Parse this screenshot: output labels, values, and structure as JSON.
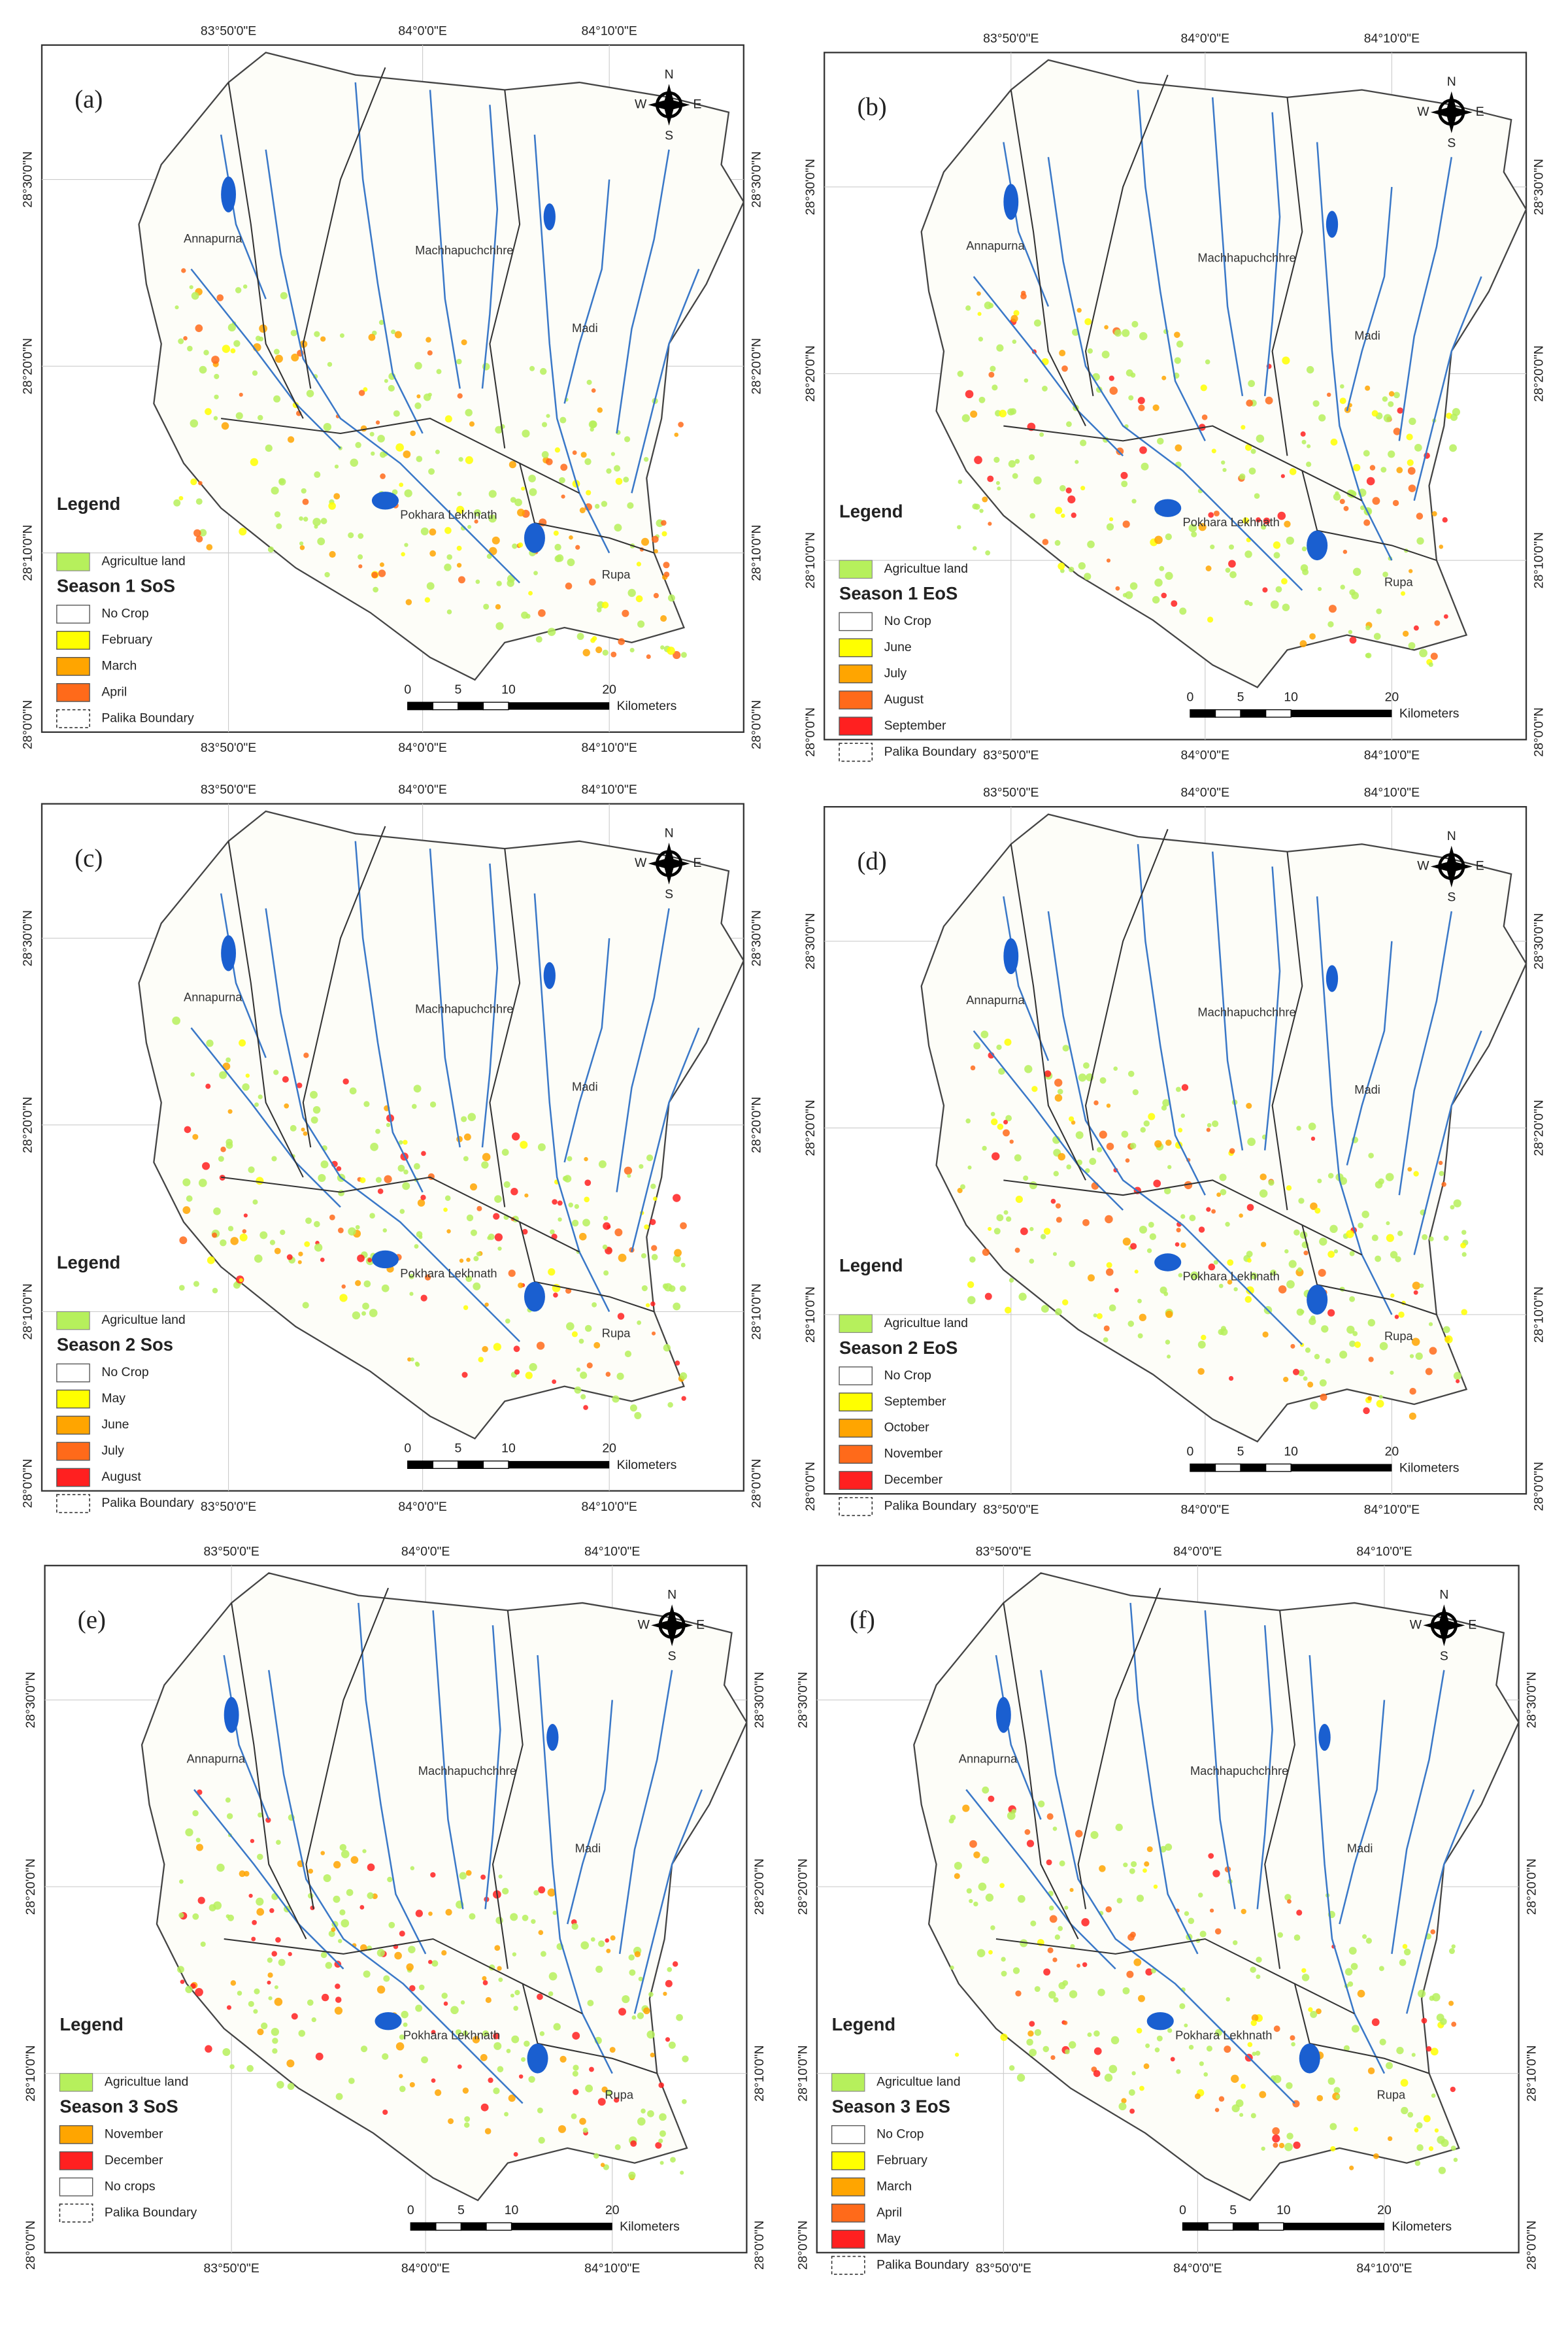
{
  "panels": [
    {
      "label": "(a)",
      "lon_top": [
        "83°50'0\"E",
        "84°0'0\"E",
        "84°10'0\"E"
      ],
      "lon_bottom": [
        "83°50'0\"E",
        "84°0'0\"E",
        "84°10'0\"E"
      ],
      "lat_left": [
        "28°30'0\"N",
        "28°20'0\"N",
        "28°10'0\"N",
        "28°0'0\"N"
      ],
      "lat_right": [
        "28°30'0\"N",
        "28°20'0\"N",
        "28°10'0\"N",
        "28°0'0\"N"
      ],
      "compass": {
        "n": "N",
        "e": "E",
        "s": "S",
        "w": "W"
      },
      "places": [
        "Annapurna",
        "Machhapuchchhre",
        "Madi",
        "Pokhara Lekhnath",
        "Rupa"
      ],
      "legend": {
        "title": "Legend",
        "land": {
          "label": "Agricultue land",
          "color": "#b6f05c"
        },
        "season": "Season 1 SoS",
        "items": [
          {
            "label": "No Crop",
            "color": "#ffffff"
          },
          {
            "label": "February",
            "color": "#ffff00"
          },
          {
            "label": "March",
            "color": "#ffa500"
          },
          {
            "label": "April",
            "color": "#ff6a1a"
          }
        ],
        "boundary": "Palika Boundary"
      },
      "scale": {
        "ticks": [
          0,
          5,
          10,
          20
        ],
        "unit": "Kilometers"
      }
    },
    {
      "label": "(b)",
      "lon_top": [
        "83°50'0\"E",
        "84°0'0\"E",
        "84°10'0\"E"
      ],
      "lon_bottom": [
        "83°50'0\"E",
        "84°0'0\"E",
        "84°10'0\"E"
      ],
      "lat_left": [
        "28°30'0\"N",
        "28°20'0\"N",
        "28°10'0\"N",
        "28°0'0\"N"
      ],
      "lat_right": [
        "28°30'0\"N",
        "28°20'0\"N",
        "28°10'0\"N",
        "28°0'0\"N"
      ],
      "compass": {
        "n": "N",
        "e": "E",
        "s": "S",
        "w": "W"
      },
      "places": [
        "Annapurna",
        "Machhapuchchhre",
        "Madi",
        "Pokhara Lekhnath",
        "Rupa"
      ],
      "legend": {
        "title": "Legend",
        "land": {
          "label": "Agricultue land",
          "color": "#b6f05c"
        },
        "season": "Season 1 EoS",
        "items": [
          {
            "label": "No Crop",
            "color": "#ffffff"
          },
          {
            "label": "June",
            "color": "#ffff00"
          },
          {
            "label": "July",
            "color": "#ffa500"
          },
          {
            "label": "August",
            "color": "#ff6a1a"
          },
          {
            "label": "September",
            "color": "#ff2020"
          }
        ],
        "boundary": "Palika Boundary"
      },
      "scale": {
        "ticks": [
          0,
          5,
          10,
          20
        ],
        "unit": "Kilometers"
      }
    },
    {
      "label": "(c)",
      "lon_top": [
        "83°50'0\"E",
        "84°0'0\"E",
        "84°10'0\"E"
      ],
      "lon_bottom": [
        "83°50'0\"E",
        "84°0'0\"E",
        "84°10'0\"E"
      ],
      "lat_left": [
        "28°30'0\"N",
        "28°20'0\"N",
        "28°10'0\"N",
        "28°0'0\"N"
      ],
      "lat_right": [
        "28°30'0\"N",
        "28°20'0\"N",
        "28°10'0\"N",
        "28°0'0\"N"
      ],
      "compass": {
        "n": "N",
        "e": "E",
        "s": "S",
        "w": "W"
      },
      "places": [
        "Annapurna",
        "Machhapuchchhre",
        "Madi",
        "Pokhara Lekhnath",
        "Rupa"
      ],
      "legend": {
        "title": "Legend",
        "land": {
          "label": "Agricultue land",
          "color": "#b6f05c"
        },
        "season": "Season 2 Sos",
        "items": [
          {
            "label": "No Crop",
            "color": "#ffffff"
          },
          {
            "label": "May",
            "color": "#ffff00"
          },
          {
            "label": "June",
            "color": "#ffa500"
          },
          {
            "label": "July",
            "color": "#ff6a1a"
          },
          {
            "label": "August",
            "color": "#ff2020"
          }
        ],
        "boundary": "Palika Boundary"
      },
      "scale": {
        "ticks": [
          0,
          5,
          10,
          20
        ],
        "unit": "Kilometers"
      }
    },
    {
      "label": "(d)",
      "lon_top": [
        "83°50'0\"E",
        "84°0'0\"E",
        "84°10'0\"E"
      ],
      "lon_bottom": [
        "83°50'0\"E",
        "84°0'0\"E",
        "84°10'0\"E"
      ],
      "lat_left": [
        "28°30'0\"N",
        "28°20'0\"N",
        "28°10'0\"N",
        "28°0'0\"N"
      ],
      "lat_right": [
        "28°30'0\"N",
        "28°20'0\"N",
        "28°10'0\"N",
        "28°0'0\"N"
      ],
      "compass": {
        "n": "N",
        "e": "E",
        "s": "S",
        "w": "W"
      },
      "places": [
        "Annapurna",
        "Machhapuchchhre",
        "Madi",
        "Pokhara Lekhnath",
        "Rupa"
      ],
      "legend": {
        "title": "Legend",
        "land": {
          "label": "Agricultue land",
          "color": "#b6f05c"
        },
        "season": "Season 2 EoS",
        "items": [
          {
            "label": "No Crop",
            "color": "#ffffff"
          },
          {
            "label": "September",
            "color": "#ffff00"
          },
          {
            "label": "October",
            "color": "#ffa500"
          },
          {
            "label": "November",
            "color": "#ff6a1a"
          },
          {
            "label": "December",
            "color": "#ff2020"
          }
        ],
        "boundary": "Palika Boundary"
      },
      "scale": {
        "ticks": [
          0,
          5,
          10,
          20
        ],
        "unit": "Kilometers"
      }
    },
    {
      "label": "(e)",
      "lon_top": [
        "83°50'0\"E",
        "84°0'0\"E",
        "84°10'0\"E"
      ],
      "lon_bottom": [
        "83°50'0\"E",
        "84°0'0\"E",
        "84°10'0\"E"
      ],
      "lat_left": [
        "28°30'0\"N",
        "28°20'0\"N",
        "28°10'0\"N",
        "28°0'0\"N"
      ],
      "lat_right": [
        "28°30'0\"N",
        "28°20'0\"N",
        "28°10'0\"N",
        "28°0'0\"N"
      ],
      "compass": {
        "n": "N",
        "e": "E",
        "s": "S",
        "w": "W"
      },
      "places": [
        "Annapurna",
        "Machhapuchchhre",
        "Madi",
        "Pokhara Lekhnath",
        "Rupa"
      ],
      "legend": {
        "title": "Legend",
        "land": {
          "label": "Agricultue land",
          "color": "#b6f05c"
        },
        "season": "Season 3 SoS",
        "items": [
          {
            "label": "November",
            "color": "#ffa500"
          },
          {
            "label": "December",
            "color": "#ff2020"
          },
          {
            "label": "No crops",
            "color": "#ffffff"
          }
        ],
        "boundary": "Palika Boundary"
      },
      "scale": {
        "ticks": [
          0,
          5,
          10,
          20
        ],
        "unit": "Kilometers"
      }
    },
    {
      "label": "(f)",
      "lon_top": [
        "83°50'0\"E",
        "84°0'0\"E",
        "84°10'0\"E"
      ],
      "lon_bottom": [
        "83°50'0\"E",
        "84°0'0\"E",
        "84°10'0\"E"
      ],
      "lat_left": [
        "28°30'0\"N",
        "28°20'0\"N",
        "28°10'0\"N",
        "28°0'0\"N"
      ],
      "lat_right": [
        "28°30'0\"N",
        "28°20'0\"N",
        "28°10'0\"N",
        "28°0'0\"N"
      ],
      "compass": {
        "n": "N",
        "e": "E",
        "s": "S",
        "w": "W"
      },
      "places": [
        "Annapurna",
        "Machhapuchchhre",
        "Madi",
        "Pokhara Lekhnath",
        "Rupa"
      ],
      "legend": {
        "title": "Legend",
        "land": {
          "label": "Agricultue land",
          "color": "#b6f05c"
        },
        "season": "Season 3 EoS",
        "items": [
          {
            "label": "No Crop",
            "color": "#ffffff"
          },
          {
            "label": "February",
            "color": "#ffff00"
          },
          {
            "label": "March",
            "color": "#ffa500"
          },
          {
            "label": "April",
            "color": "#ff6a1a"
          },
          {
            "label": "May",
            "color": "#ff2020"
          }
        ],
        "boundary": "Palika Boundary"
      },
      "scale": {
        "ticks": [
          0,
          5,
          10,
          20
        ],
        "unit": "Kilometers"
      }
    }
  ]
}
